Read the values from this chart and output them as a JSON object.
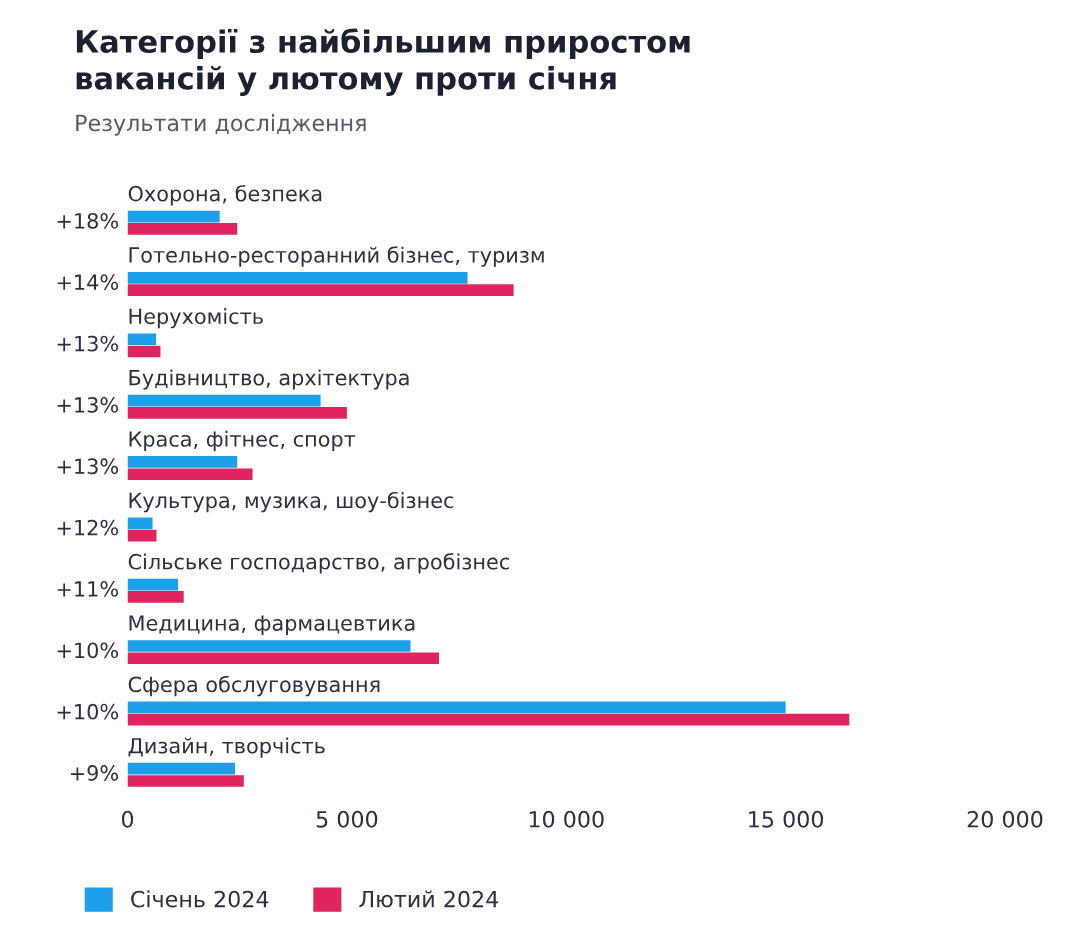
{
  "chart_data": {
    "type": "bar",
    "orientation": "horizontal",
    "title": "Категорії з найбільшим приростом\nвакансій у лютому проти січня",
    "subtitle": "Результати дослідження",
    "categories": [
      "Охорона, безпека",
      "Готельно-ресторанний бізнес, туризм",
      "Нерухомість",
      "Будівництво, архітектура",
      "Краса, фітнес, спорт",
      "Культура, музика, шоу-бізнес",
      "Сільське господарство, агробізнес",
      "Медицина, фармацевтика",
      "Сфера обслуговування",
      "Дизайн, творчість"
    ],
    "series": [
      {
        "name": "Січень 2024",
        "color": "#1a9fe8",
        "values": [
          2100,
          7750,
          650,
          4400,
          2500,
          570,
          1150,
          6450,
          15000,
          2450
        ]
      },
      {
        "name": "Лютий 2024",
        "color": "#e0245e",
        "values": [
          2500,
          8800,
          750,
          5000,
          2850,
          660,
          1280,
          7100,
          16450,
          2650
        ]
      }
    ],
    "xlim": [
      0,
      20000
    ],
    "xticks": [
      0,
      {
        "value": 5000,
        "label": "5 000"
      },
      {
        "value": 10000,
        "label": "10 000"
      },
      {
        "value": 15000,
        "label": "15 000"
      },
      {
        "value": 20000,
        "label": "20 000"
      }
    ],
    "annotations": [
      "+18%",
      "+14%",
      "+13%",
      "+13%",
      "+13%",
      "+12%",
      "+11%",
      "+10%",
      "+10%",
      "+9%"
    ],
    "legend": "bottom",
    "grid": false
  }
}
